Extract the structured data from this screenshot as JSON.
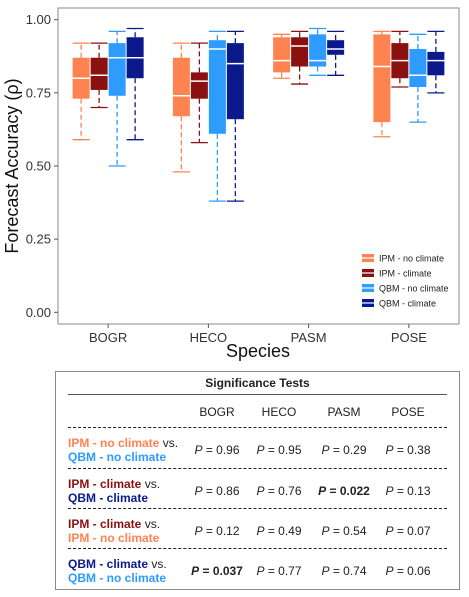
{
  "chart_data": {
    "type": "box",
    "xlabel": "Species",
    "ylabel": "Forecast Accuracy (ρ)",
    "categories": [
      "BOGR",
      "HECO",
      "PASM",
      "POSE"
    ],
    "yticks": [
      "0.00",
      "0.25",
      "0.50",
      "0.75",
      "1.00"
    ],
    "ylim": [
      -0.04,
      1.04
    ],
    "grid": false,
    "legend_position": "bottom-right",
    "series": [
      {
        "name": "IPM - no climate",
        "color": "#FF8350",
        "boxes": [
          {
            "min": 0.59,
            "q1": 0.73,
            "median": 0.8,
            "q3": 0.87,
            "max": 0.92
          },
          {
            "min": 0.48,
            "q1": 0.67,
            "median": 0.74,
            "q3": 0.87,
            "max": 0.92
          },
          {
            "min": 0.8,
            "q1": 0.82,
            "median": 0.86,
            "q3": 0.94,
            "max": 0.95
          },
          {
            "min": 0.6,
            "q1": 0.65,
            "median": 0.84,
            "q3": 0.95,
            "max": 0.96
          }
        ]
      },
      {
        "name": "IPM - climate",
        "color": "#8B1010",
        "boxes": [
          {
            "min": 0.7,
            "q1": 0.76,
            "median": 0.81,
            "q3": 0.87,
            "max": 0.92
          },
          {
            "min": 0.58,
            "q1": 0.73,
            "median": 0.79,
            "q3": 0.82,
            "max": 0.92
          },
          {
            "min": 0.78,
            "q1": 0.84,
            "median": 0.91,
            "q3": 0.94,
            "max": 0.96
          },
          {
            "min": 0.77,
            "q1": 0.8,
            "median": 0.86,
            "q3": 0.92,
            "max": 0.96
          }
        ]
      },
      {
        "name": "QBM - no climate",
        "color": "#2E9BFF",
        "boxes": [
          {
            "min": 0.5,
            "q1": 0.74,
            "median": 0.87,
            "q3": 0.92,
            "max": 0.96
          },
          {
            "min": 0.38,
            "q1": 0.61,
            "median": 0.9,
            "q3": 0.93,
            "max": 0.96
          },
          {
            "min": 0.81,
            "q1": 0.84,
            "median": 0.86,
            "q3": 0.95,
            "max": 0.97
          },
          {
            "min": 0.65,
            "q1": 0.77,
            "median": 0.81,
            "q3": 0.9,
            "max": 0.95
          }
        ]
      },
      {
        "name": "QBM - climate",
        "color": "#0A1A8C",
        "boxes": [
          {
            "min": 0.59,
            "q1": 0.8,
            "median": 0.87,
            "q3": 0.94,
            "max": 0.97
          },
          {
            "min": 0.38,
            "q1": 0.66,
            "median": 0.85,
            "q3": 0.92,
            "max": 0.96
          },
          {
            "min": 0.81,
            "q1": 0.88,
            "median": 0.9,
            "q3": 0.93,
            "max": 0.96
          },
          {
            "min": 0.75,
            "q1": 0.81,
            "median": 0.86,
            "q3": 0.89,
            "max": 0.96
          }
        ]
      }
    ]
  },
  "significance": {
    "title": "Significance Tests",
    "p_symbol": "P",
    "columns": [
      "BOGR",
      "HECO",
      "PASM",
      "POSE"
    ],
    "rows": [
      {
        "label_a": "IPM - no climate",
        "color_a": "#FF8350",
        "vs": " vs.",
        "label_b": "QBM - no climate",
        "color_b": "#2E9BFF",
        "values": [
          " = 0.96",
          " = 0.95",
          " = 0.29",
          " = 0.38"
        ],
        "significant": [
          false,
          false,
          false,
          false
        ]
      },
      {
        "label_a": "IPM - climate",
        "color_a": "#8B1010",
        "vs": " vs.",
        "label_b": "QBM - climate",
        "color_b": "#0A1A8C",
        "values": [
          " = 0.86",
          " = 0.76",
          " = 0.022",
          " = 0.13"
        ],
        "significant": [
          false,
          false,
          true,
          false
        ]
      },
      {
        "label_a": "IPM - climate",
        "color_a": "#8B1010",
        "vs": " vs.",
        "label_b": "IPM - no climate",
        "color_b": "#FF8350",
        "values": [
          " = 0.12",
          " = 0.49",
          " = 0.54",
          " = 0.07"
        ],
        "significant": [
          false,
          false,
          false,
          false
        ]
      },
      {
        "label_a": "QBM - climate",
        "color_a": "#0A1A8C",
        "vs": " vs.",
        "label_b": "QBM - no climate",
        "color_b": "#2E9BFF",
        "values": [
          " = 0.037",
          " = 0.77",
          " = 0.74",
          " = 0.06"
        ],
        "significant": [
          true,
          false,
          false,
          false
        ]
      }
    ]
  }
}
